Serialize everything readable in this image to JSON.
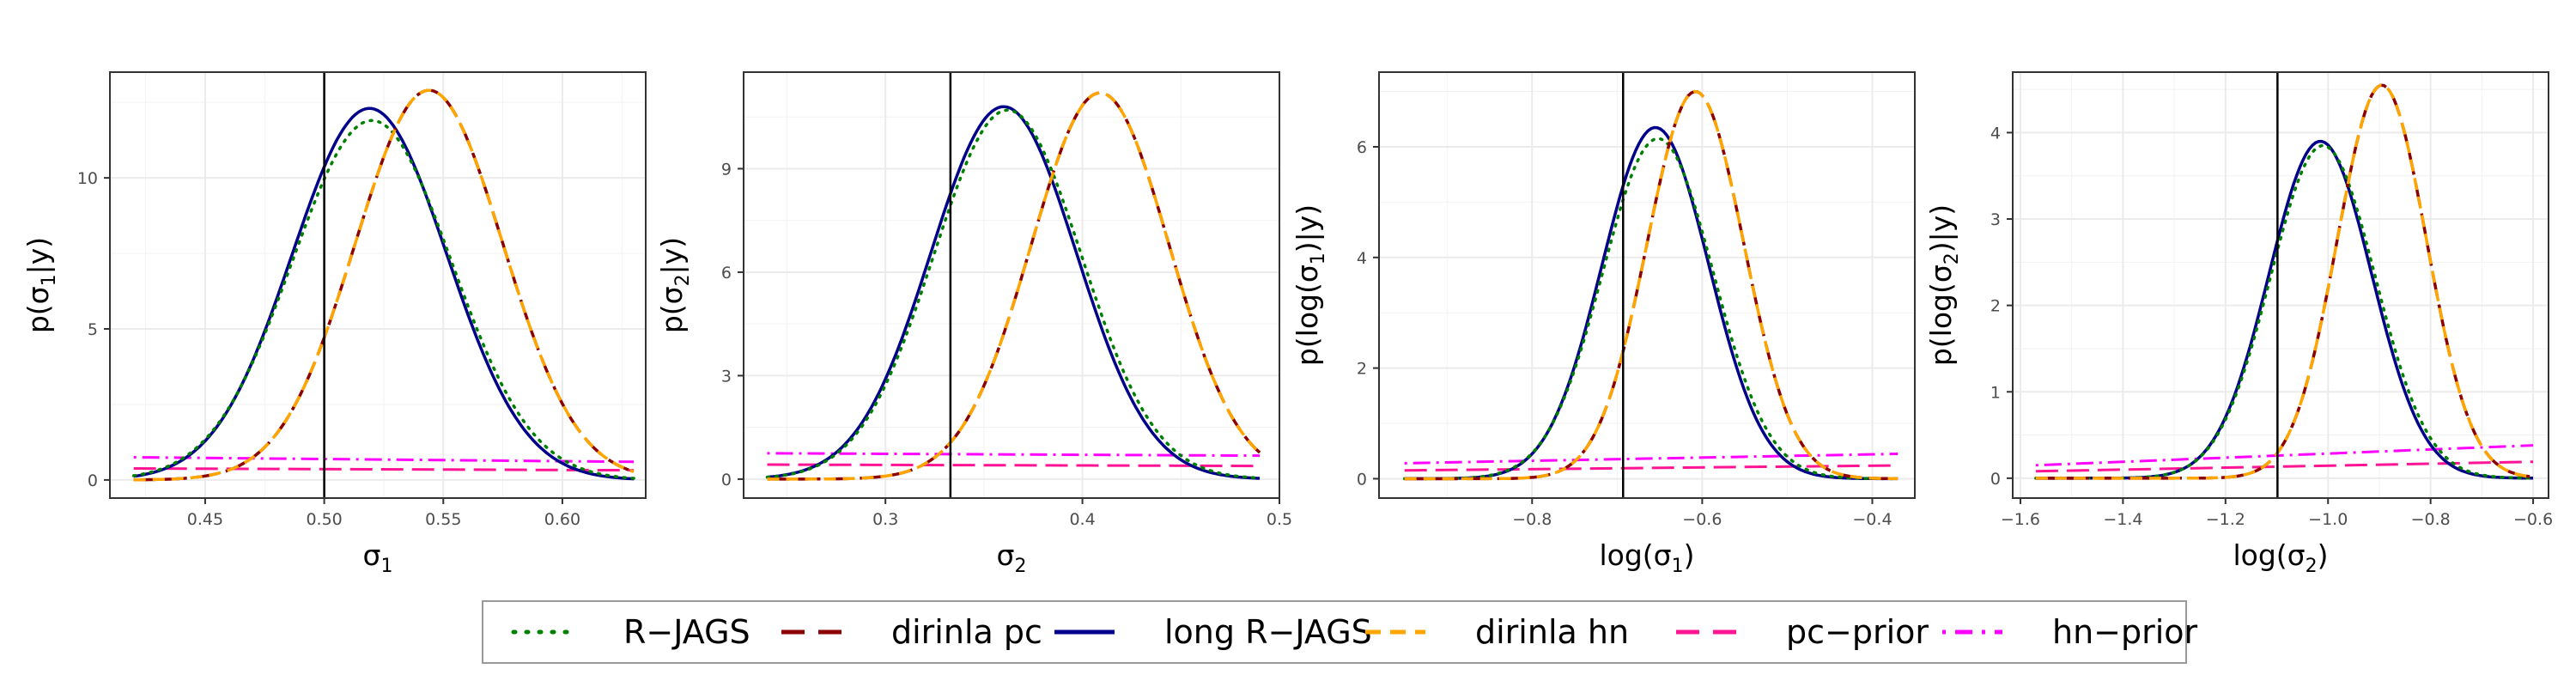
{
  "legend": {
    "entries": [
      {
        "label": "R−JAGS",
        "color": "#008000",
        "dash": "dotted"
      },
      {
        "label": "dirinla pc",
        "color": "#8B0000",
        "dash": "longdash"
      },
      {
        "label": "long R−JAGS",
        "color": "#00008B",
        "dash": "solid"
      },
      {
        "label": "dirinla hn",
        "color": "#FFA500",
        "dash": "dashed"
      },
      {
        "label": "pc−prior",
        "color": "#FF1493",
        "dash": "longdash"
      },
      {
        "label": "hn−prior",
        "color": "#FF00FF",
        "dash": "dotdash"
      }
    ]
  },
  "chart_data": [
    {
      "type": "line",
      "xlabel_base": "σ",
      "xlabel_sub": "1",
      "ylabel_pre": "p(σ",
      "ylabel_sub": "1",
      "ylabel_post": "|y)",
      "xlim": [
        0.41,
        0.635
      ],
      "ylim": [
        -0.6,
        13.5
      ],
      "xticks": [
        0.45,
        0.5,
        0.55,
        0.6
      ],
      "xtick_labels": [
        "0.45",
        "0.50",
        "0.55",
        "0.60"
      ],
      "yticks": [
        0,
        5,
        10
      ],
      "ytick_labels": [
        "0",
        "5",
        "10"
      ],
      "x_range": [
        0.42,
        0.63
      ],
      "vline": 0.5,
      "series": [
        {
          "key": "hn-prior",
          "color": "#FF00FF",
          "dash": "dotdash",
          "width": 3,
          "kind": "line",
          "y": [
            0.75,
            0.6
          ]
        },
        {
          "key": "pc-prior",
          "color": "#FF1493",
          "dash": "longdash",
          "width": 3,
          "kind": "line",
          "y": [
            0.38,
            0.32
          ]
        },
        {
          "key": "long R-JAGS",
          "color": "#00008B",
          "dash": "solid",
          "width": 3.5,
          "kind": "gauss",
          "mu": 0.519,
          "sd": 0.0325,
          "peak": 12.3
        },
        {
          "key": "R-JAGS",
          "color": "#008000",
          "dash": "dotted",
          "width": 3.5,
          "kind": "gauss",
          "mu": 0.52,
          "sd": 0.0335,
          "peak": 11.9
        },
        {
          "key": "dirinla pc",
          "color": "#8B0000",
          "dash": "longdash",
          "width": 3.5,
          "kind": "gauss",
          "mu": 0.544,
          "sd": 0.031,
          "peak": 12.9
        },
        {
          "key": "dirinla hn",
          "color": "#FFA500",
          "dash": "dashed",
          "width": 3.5,
          "kind": "gauss",
          "mu": 0.544,
          "sd": 0.031,
          "peak": 12.9
        }
      ]
    },
    {
      "type": "line",
      "xlabel_base": "σ",
      "xlabel_sub": "2",
      "ylabel_pre": "p(σ",
      "ylabel_sub": "2",
      "ylabel_post": "|y)",
      "xlim": [
        0.228,
        0.5
      ],
      "ylim": [
        -0.55,
        11.8
      ],
      "xticks": [
        0.3,
        0.4,
        0.5
      ],
      "xtick_labels": [
        "0.3",
        "0.4",
        "0.5"
      ],
      "yticks": [
        0,
        3,
        6,
        9
      ],
      "ytick_labels": [
        "0",
        "3",
        "6",
        "9"
      ],
      "x_range": [
        0.24,
        0.49
      ],
      "vline": 0.333,
      "series": [
        {
          "key": "hn-prior",
          "color": "#FF00FF",
          "dash": "dotdash",
          "width": 3,
          "kind": "line",
          "y": [
            0.75,
            0.68
          ]
        },
        {
          "key": "pc-prior",
          "color": "#FF1493",
          "dash": "longdash",
          "width": 3,
          "kind": "line",
          "y": [
            0.42,
            0.38
          ]
        },
        {
          "key": "long R-JAGS",
          "color": "#00008B",
          "dash": "solid",
          "width": 3.5,
          "kind": "gauss",
          "mu": 0.36,
          "sd": 0.037,
          "peak": 10.8
        },
        {
          "key": "R-JAGS",
          "color": "#008000",
          "dash": "dotted",
          "width": 3.5,
          "kind": "gauss",
          "mu": 0.362,
          "sd": 0.0375,
          "peak": 10.7
        },
        {
          "key": "dirinla pc",
          "color": "#8B0000",
          "dash": "longdash",
          "width": 3.5,
          "kind": "gauss",
          "mu": 0.409,
          "sd": 0.035,
          "peak": 11.2
        },
        {
          "key": "dirinla hn",
          "color": "#FFA500",
          "dash": "dashed",
          "width": 3.5,
          "kind": "gauss",
          "mu": 0.409,
          "sd": 0.035,
          "peak": 11.2
        }
      ]
    },
    {
      "type": "line",
      "xlabel_base": "log(σ",
      "xlabel_sub": "1",
      "xlabel_post": ")",
      "ylabel_pre": "p(log(σ",
      "ylabel_sub": "1",
      "ylabel_post": ")|y)",
      "xlim": [
        -0.98,
        -0.35
      ],
      "ylim": [
        -0.35,
        7.35
      ],
      "xticks": [
        -0.8,
        -0.6,
        -0.4
      ],
      "xtick_labels": [
        "−0.8",
        "−0.6",
        "−0.4"
      ],
      "yticks": [
        0,
        2,
        4,
        6
      ],
      "ytick_labels": [
        "0",
        "2",
        "4",
        "6"
      ],
      "x_range": [
        -0.95,
        -0.37
      ],
      "vline": -0.693,
      "series": [
        {
          "key": "hn-prior",
          "color": "#FF00FF",
          "dash": "dotdash",
          "width": 3,
          "kind": "line",
          "y": [
            0.28,
            0.45
          ]
        },
        {
          "key": "pc-prior",
          "color": "#FF1493",
          "dash": "longdash",
          "width": 3,
          "kind": "line",
          "y": [
            0.15,
            0.24
          ]
        },
        {
          "key": "long R-JAGS",
          "color": "#00008B",
          "dash": "solid",
          "width": 3.5,
          "kind": "gauss",
          "mu": -0.655,
          "sd": 0.063,
          "peak": 6.35
        },
        {
          "key": "R-JAGS",
          "color": "#008000",
          "dash": "dotted",
          "width": 3.5,
          "kind": "gauss",
          "mu": -0.652,
          "sd": 0.065,
          "peak": 6.15
        },
        {
          "key": "dirinla pc",
          "color": "#8B0000",
          "dash": "longdash",
          "width": 3.5,
          "kind": "gauss",
          "mu": -0.608,
          "sd": 0.057,
          "peak": 7.0
        },
        {
          "key": "dirinla hn",
          "color": "#FFA500",
          "dash": "dashed",
          "width": 3.5,
          "kind": "gauss",
          "mu": -0.608,
          "sd": 0.057,
          "peak": 7.0
        }
      ]
    },
    {
      "type": "line",
      "xlabel_base": "log(σ",
      "xlabel_sub": "2",
      "xlabel_post": ")",
      "ylabel_pre": "p(log(σ",
      "ylabel_sub": "2",
      "ylabel_post": ")|y)",
      "xlim": [
        -1.615,
        -0.57
      ],
      "ylim": [
        -0.23,
        4.7
      ],
      "xticks": [
        -1.6,
        -1.4,
        -1.2,
        -1.0,
        -0.8,
        -0.6
      ],
      "xtick_labels": [
        "−1.6",
        "−1.4",
        "−1.2",
        "−1.0",
        "−0.8",
        "−0.6"
      ],
      "yticks": [
        0,
        1,
        2,
        3,
        4
      ],
      "ytick_labels": [
        "0",
        "1",
        "2",
        "3",
        "4"
      ],
      "x_range": [
        -1.57,
        -0.6
      ],
      "vline": -1.0986,
      "series": [
        {
          "key": "hn-prior",
          "color": "#FF00FF",
          "dash": "dotdash",
          "width": 3,
          "kind": "line",
          "y": [
            0.15,
            0.38
          ]
        },
        {
          "key": "pc-prior",
          "color": "#FF1493",
          "dash": "longdash",
          "width": 3,
          "kind": "line",
          "y": [
            0.08,
            0.19
          ]
        },
        {
          "key": "long R-JAGS",
          "color": "#00008B",
          "dash": "solid",
          "width": 3.5,
          "kind": "gauss",
          "mu": -1.015,
          "sd": 0.1,
          "peak": 3.9
        },
        {
          "key": "R-JAGS",
          "color": "#008000",
          "dash": "dotted",
          "width": 3.5,
          "kind": "gauss",
          "mu": -1.01,
          "sd": 0.102,
          "peak": 3.85
        },
        {
          "key": "dirinla pc",
          "color": "#8B0000",
          "dash": "longdash",
          "width": 3.5,
          "kind": "gauss",
          "mu": -0.895,
          "sd": 0.087,
          "peak": 4.55
        },
        {
          "key": "dirinla hn",
          "color": "#FFA500",
          "dash": "dashed",
          "width": 3.5,
          "kind": "gauss",
          "mu": -0.895,
          "sd": 0.087,
          "peak": 4.55
        }
      ]
    }
  ]
}
